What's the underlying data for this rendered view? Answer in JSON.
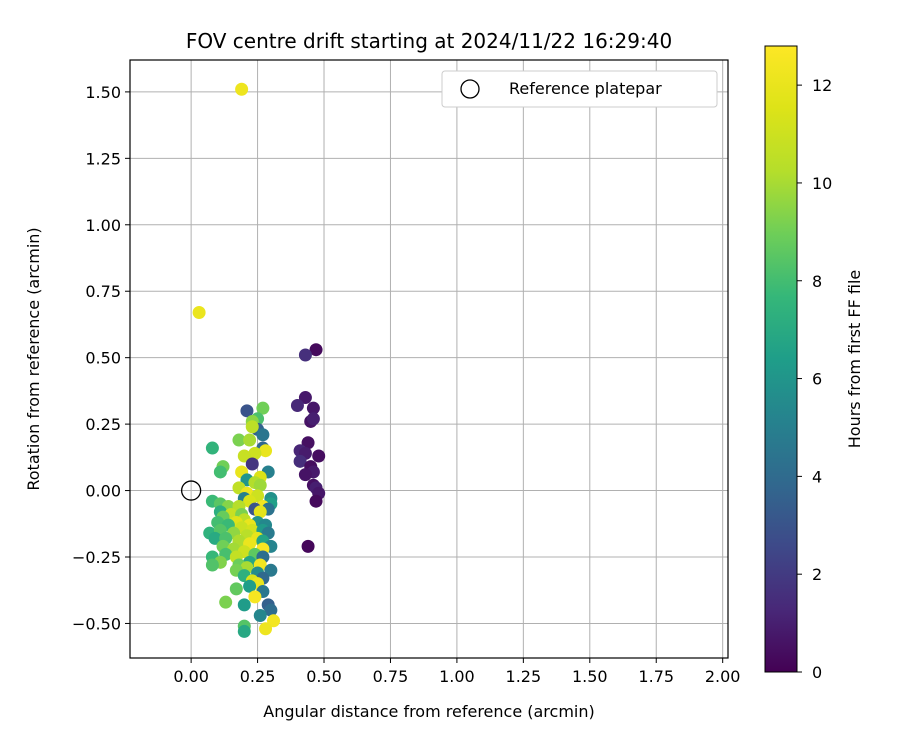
{
  "chart_data": {
    "type": "scatter",
    "title": "FOV centre drift starting at 2024/11/22 16:29:40",
    "xlabel": "Angular distance from reference (arcmin)",
    "ylabel": "Rotation from reference (arcmin)",
    "xlim": [
      -0.23,
      2.02
    ],
    "ylim": [
      -0.63,
      1.62
    ],
    "xticks": [
      "0.00",
      "0.25",
      "0.50",
      "0.75",
      "1.00",
      "1.25",
      "1.50",
      "1.75",
      "2.00"
    ],
    "yticks": [
      "1.50",
      "1.25",
      "1.00",
      "0.75",
      "0.50",
      "0.25",
      "0.00",
      "−0.25",
      "−0.50"
    ],
    "xtick_values": [
      0,
      0.25,
      0.5,
      0.75,
      1.0,
      1.25,
      1.5,
      1.75,
      2.0
    ],
    "ytick_values": [
      1.5,
      1.25,
      1.0,
      0.75,
      0.5,
      0.25,
      0.0,
      -0.25,
      -0.5
    ],
    "grid": true,
    "legend": {
      "position": "top-right",
      "entries": [
        "Reference platepar"
      ]
    },
    "reference_point": {
      "x": 0.0,
      "y": 0.0
    },
    "colorbar": {
      "label": "Hours from first FF file",
      "range": [
        0,
        12.8
      ],
      "ticks": [
        "0",
        "2",
        "4",
        "6",
        "8",
        "10",
        "12"
      ],
      "tick_values": [
        0,
        2,
        4,
        6,
        8,
        10,
        12
      ],
      "colormap": "viridis"
    },
    "points": [
      {
        "x": 0.47,
        "y": 0.53,
        "h": 0.3
      },
      {
        "x": 0.43,
        "y": 0.51,
        "h": 1.6
      },
      {
        "x": 0.43,
        "y": 0.35,
        "h": 0.8
      },
      {
        "x": 0.4,
        "y": 0.32,
        "h": 1.3
      },
      {
        "x": 0.46,
        "y": 0.31,
        "h": 0.7
      },
      {
        "x": 0.45,
        "y": 0.26,
        "h": 0.6
      },
      {
        "x": 0.46,
        "y": 0.27,
        "h": 1.0
      },
      {
        "x": 0.44,
        "y": 0.18,
        "h": 0.5
      },
      {
        "x": 0.41,
        "y": 0.15,
        "h": 1.2
      },
      {
        "x": 0.43,
        "y": 0.14,
        "h": 0.9
      },
      {
        "x": 0.48,
        "y": 0.13,
        "h": 0.4
      },
      {
        "x": 0.41,
        "y": 0.11,
        "h": 1.5
      },
      {
        "x": 0.45,
        "y": 0.09,
        "h": 0.4
      },
      {
        "x": 0.46,
        "y": 0.07,
        "h": 0.8
      },
      {
        "x": 0.43,
        "y": 0.06,
        "h": 0.6
      },
      {
        "x": 0.46,
        "y": 0.02,
        "h": 0.5
      },
      {
        "x": 0.47,
        "y": 0.01,
        "h": 1.0
      },
      {
        "x": 0.48,
        "y": -0.01,
        "h": 0.7
      },
      {
        "x": 0.47,
        "y": -0.04,
        "h": 0.3
      },
      {
        "x": 0.44,
        "y": -0.21,
        "h": 0.2
      },
      {
        "x": 0.21,
        "y": 0.3,
        "h": 3.0
      },
      {
        "x": 0.27,
        "y": 0.31,
        "h": 9.0
      },
      {
        "x": 0.25,
        "y": 0.27,
        "h": 8.2
      },
      {
        "x": 0.23,
        "y": 0.26,
        "h": 9.5
      },
      {
        "x": 0.25,
        "y": 0.23,
        "h": 3.6
      },
      {
        "x": 0.27,
        "y": 0.21,
        "h": 4.5
      },
      {
        "x": 0.23,
        "y": 0.24,
        "h": 10.5
      },
      {
        "x": 0.18,
        "y": 0.19,
        "h": 9.2
      },
      {
        "x": 0.22,
        "y": 0.19,
        "h": 10.0
      },
      {
        "x": 0.27,
        "y": 0.16,
        "h": 3.8
      },
      {
        "x": 0.28,
        "y": 0.15,
        "h": 12.0
      },
      {
        "x": 0.08,
        "y": 0.16,
        "h": 7.5
      },
      {
        "x": 0.24,
        "y": 0.14,
        "h": 11.0
      },
      {
        "x": 0.2,
        "y": 0.13,
        "h": 10.8
      },
      {
        "x": 0.23,
        "y": 0.1,
        "h": 1.8
      },
      {
        "x": 0.12,
        "y": 0.09,
        "h": 9.0
      },
      {
        "x": 0.11,
        "y": 0.07,
        "h": 8.0
      },
      {
        "x": 0.19,
        "y": 0.07,
        "h": 12.0
      },
      {
        "x": 0.29,
        "y": 0.07,
        "h": 5.0
      },
      {
        "x": 0.26,
        "y": 0.05,
        "h": 11.5
      },
      {
        "x": 0.21,
        "y": 0.04,
        "h": 6.0
      },
      {
        "x": 0.24,
        "y": 0.03,
        "h": 10.2
      },
      {
        "x": 0.26,
        "y": 0.02,
        "h": 9.8
      },
      {
        "x": 0.18,
        "y": 0.01,
        "h": 10.6
      },
      {
        "x": 0.21,
        "y": -0.01,
        "h": 12.2
      },
      {
        "x": 0.25,
        "y": -0.02,
        "h": 11.0
      },
      {
        "x": 0.3,
        "y": -0.03,
        "h": 5.8
      },
      {
        "x": 0.3,
        "y": -0.05,
        "h": 6.5
      },
      {
        "x": 0.2,
        "y": -0.03,
        "h": 5.0
      },
      {
        "x": 0.22,
        "y": -0.04,
        "h": 11.4
      },
      {
        "x": 0.08,
        "y": -0.04,
        "h": 7.8
      },
      {
        "x": 0.11,
        "y": -0.05,
        "h": 8.5
      },
      {
        "x": 0.14,
        "y": -0.06,
        "h": 9.4
      },
      {
        "x": 0.27,
        "y": -0.06,
        "h": 12.4
      },
      {
        "x": 0.29,
        "y": -0.07,
        "h": 4.4
      },
      {
        "x": 0.24,
        "y": -0.07,
        "h": 3.0
      },
      {
        "x": 0.18,
        "y": -0.06,
        "h": 10.3
      },
      {
        "x": 0.26,
        "y": -0.08,
        "h": 11.8
      },
      {
        "x": 0.11,
        "y": -0.08,
        "h": 7.2
      },
      {
        "x": 0.15,
        "y": -0.09,
        "h": 10.8
      },
      {
        "x": 0.19,
        "y": -0.09,
        "h": 9.2
      },
      {
        "x": 0.12,
        "y": -0.1,
        "h": 8.8
      },
      {
        "x": 0.2,
        "y": -0.11,
        "h": 10.5
      },
      {
        "x": 0.17,
        "y": -0.12,
        "h": 11.6
      },
      {
        "x": 0.1,
        "y": -0.12,
        "h": 8.0
      },
      {
        "x": 0.14,
        "y": -0.13,
        "h": 7.8
      },
      {
        "x": 0.25,
        "y": -0.12,
        "h": 5.9
      },
      {
        "x": 0.28,
        "y": -0.13,
        "h": 5.4
      },
      {
        "x": 0.22,
        "y": -0.13,
        "h": 12.0
      },
      {
        "x": 0.19,
        "y": -0.14,
        "h": 10.9
      },
      {
        "x": 0.23,
        "y": -0.15,
        "h": 11.2
      },
      {
        "x": 0.27,
        "y": -0.15,
        "h": 6.2
      },
      {
        "x": 0.07,
        "y": -0.16,
        "h": 7.4
      },
      {
        "x": 0.11,
        "y": -0.15,
        "h": 8.4
      },
      {
        "x": 0.16,
        "y": -0.16,
        "h": 9.6
      },
      {
        "x": 0.29,
        "y": -0.16,
        "h": 4.8
      },
      {
        "x": 0.21,
        "y": -0.17,
        "h": 10.4
      },
      {
        "x": 0.09,
        "y": -0.18,
        "h": 7.0
      },
      {
        "x": 0.13,
        "y": -0.18,
        "h": 8.2
      },
      {
        "x": 0.25,
        "y": -0.18,
        "h": 11.9
      },
      {
        "x": 0.18,
        "y": -0.19,
        "h": 10.1
      },
      {
        "x": 0.22,
        "y": -0.2,
        "h": 12.1
      },
      {
        "x": 0.27,
        "y": -0.19,
        "h": 6.7
      },
      {
        "x": 0.3,
        "y": -0.21,
        "h": 5.2
      },
      {
        "x": 0.12,
        "y": -0.21,
        "h": 9.0
      },
      {
        "x": 0.16,
        "y": -0.22,
        "h": 9.9
      },
      {
        "x": 0.27,
        "y": -0.22,
        "h": 12.6
      },
      {
        "x": 0.2,
        "y": -0.23,
        "h": 11.0
      },
      {
        "x": 0.24,
        "y": -0.24,
        "h": 8.6
      },
      {
        "x": 0.08,
        "y": -0.25,
        "h": 7.7
      },
      {
        "x": 0.13,
        "y": -0.24,
        "h": 8.1
      },
      {
        "x": 0.17,
        "y": -0.25,
        "h": 10.7
      },
      {
        "x": 0.27,
        "y": -0.25,
        "h": 4.2
      },
      {
        "x": 0.22,
        "y": -0.27,
        "h": 6.8
      },
      {
        "x": 0.11,
        "y": -0.27,
        "h": 9.3
      },
      {
        "x": 0.26,
        "y": -0.28,
        "h": 12.3
      },
      {
        "x": 0.18,
        "y": -0.28,
        "h": 8.9
      },
      {
        "x": 0.08,
        "y": -0.28,
        "h": 8.3
      },
      {
        "x": 0.21,
        "y": -0.29,
        "h": 10.0
      },
      {
        "x": 0.3,
        "y": -0.3,
        "h": 4.7
      },
      {
        "x": 0.25,
        "y": -0.31,
        "h": 5.6
      },
      {
        "x": 0.17,
        "y": -0.3,
        "h": 9.1
      },
      {
        "x": 0.27,
        "y": -0.33,
        "h": 3.9
      },
      {
        "x": 0.2,
        "y": -0.32,
        "h": 7.3
      },
      {
        "x": 0.23,
        "y": -0.34,
        "h": 11.4
      },
      {
        "x": 0.25,
        "y": -0.35,
        "h": 12.0
      },
      {
        "x": 0.22,
        "y": -0.36,
        "h": 6.4
      },
      {
        "x": 0.17,
        "y": -0.37,
        "h": 8.7
      },
      {
        "x": 0.27,
        "y": -0.38,
        "h": 4.6
      },
      {
        "x": 0.24,
        "y": -0.4,
        "h": 12.5
      },
      {
        "x": 0.13,
        "y": -0.42,
        "h": 9.2
      },
      {
        "x": 0.2,
        "y": -0.43,
        "h": 6.3
      },
      {
        "x": 0.29,
        "y": -0.43,
        "h": 3.5
      },
      {
        "x": 0.3,
        "y": -0.45,
        "h": 4.1
      },
      {
        "x": 0.26,
        "y": -0.47,
        "h": 5.3
      },
      {
        "x": 0.31,
        "y": -0.49,
        "h": 12.4
      },
      {
        "x": 0.2,
        "y": -0.51,
        "h": 8.4
      },
      {
        "x": 0.28,
        "y": -0.52,
        "h": 12.2
      },
      {
        "x": 0.2,
        "y": -0.53,
        "h": 6.9
      },
      {
        "x": 0.03,
        "y": 0.67,
        "h": 12.1
      },
      {
        "x": 0.19,
        "y": 1.51,
        "h": 12.2
      }
    ]
  }
}
